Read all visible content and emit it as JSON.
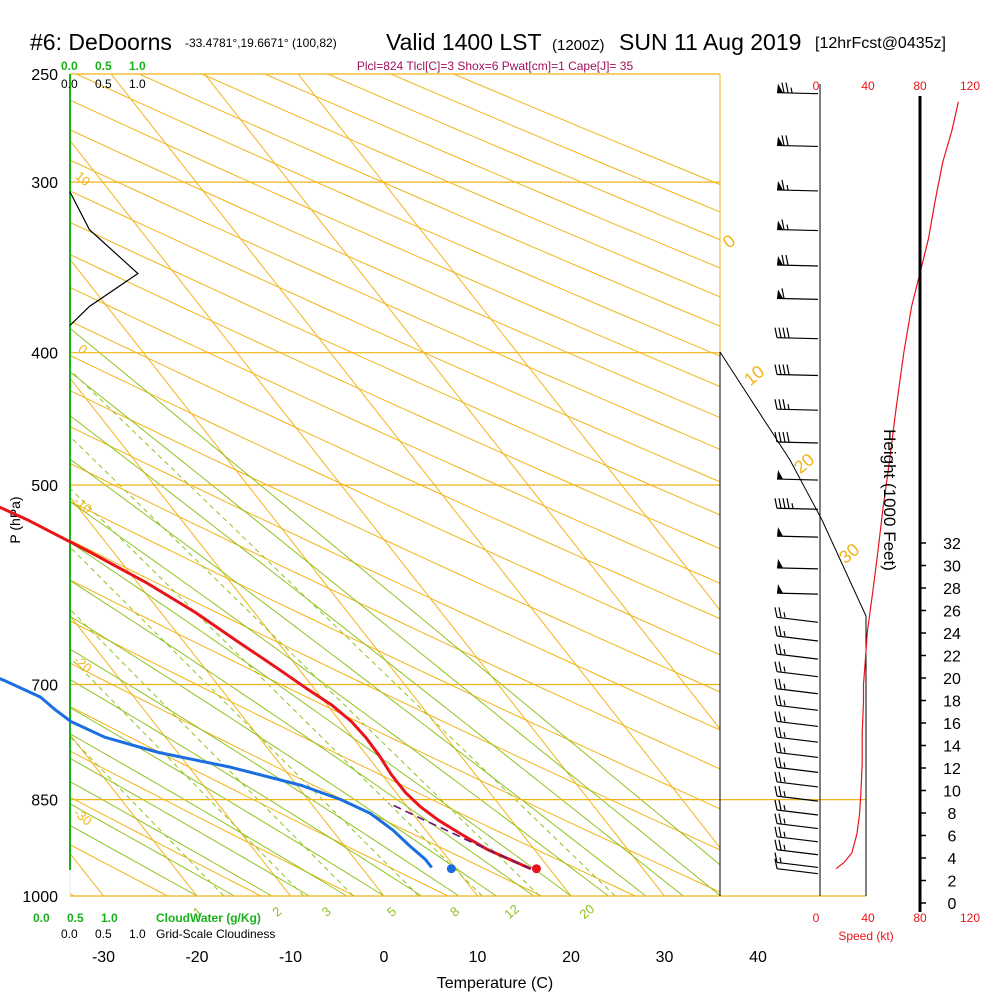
{
  "header": {
    "station": "#6: DeDoorns",
    "coords": "-33.4781°,19.6671° (100,82)",
    "valid": "Valid 1400 LST",
    "utc": "(1200Z)",
    "date": "SUN 11 Aug 2019",
    "forecast": "[12hrFcst@0435z]",
    "indices": "Plcl=824 Tlcl[C]=3 Shox=6 Pwat[cm]=1 Cape[J]= 35"
  },
  "colors": {
    "isotherm": "#f2b418",
    "adiabat": "#8fc31f",
    "temperature": "#e8141a",
    "dewpoint": "#1a6fe0",
    "parcel": "#6a1470",
    "wind_speed": "#e8141a",
    "cloud_water": "#19b119"
  },
  "chart_data": {
    "type": "line",
    "title": "Skew-T log-P sounding",
    "xlabel": "Temperature (C)",
    "ylabel": "P (hPa)",
    "x_ticks": [
      "-30",
      "-20",
      "-10",
      "0",
      "10",
      "20",
      "30",
      "40"
    ],
    "p_levels": [
      250,
      300,
      400,
      500,
      700,
      850,
      1000
    ],
    "p_labels": [
      "250",
      "300",
      "400",
      "500",
      "700",
      "850",
      "1000"
    ],
    "height_axis": {
      "label": "Height (1000 Feet)",
      "ticks": [
        "0",
        "2",
        "4",
        "6",
        "8",
        "10",
        "12",
        "14",
        "16",
        "18",
        "20",
        "22",
        "24",
        "26",
        "28",
        "30",
        "32"
      ]
    },
    "isotherm_labels": [
      {
        "text": "10",
        "T": 10,
        "p": 300
      },
      {
        "text": "0",
        "T": 0,
        "p": 400
      },
      {
        "text": "-10",
        "T": -10,
        "p": 520
      },
      {
        "text": "-20",
        "T": -20,
        "p": 680
      },
      {
        "text": "-30",
        "T": -30,
        "p": 880
      }
    ],
    "mixing_ratio_labels": [
      "1",
      "2",
      "3",
      "5",
      "8",
      "12",
      "20"
    ],
    "lapse_labels": [
      "0",
      "10",
      "20",
      "30"
    ],
    "series": [
      {
        "name": "Temperature",
        "points": [
          [
            18.0,
            955
          ],
          [
            17.0,
            945
          ],
          [
            15.0,
            925
          ],
          [
            13.4,
            900
          ],
          [
            12.2,
            880
          ],
          [
            11.4,
            860
          ],
          [
            11.0,
            840
          ],
          [
            11.0,
            815
          ],
          [
            11.3,
            790
          ],
          [
            11.4,
            765
          ],
          [
            11.2,
            745
          ],
          [
            10.5,
            725
          ],
          [
            9.2,
            705
          ],
          [
            7.7,
            680
          ],
          [
            5.7,
            650
          ],
          [
            3.7,
            620
          ],
          [
            1.0,
            590
          ],
          [
            -2.5,
            560
          ],
          [
            -6.5,
            530
          ],
          [
            -10.0,
            510
          ],
          [
            -13.6,
            490
          ],
          [
            -17.0,
            470
          ],
          [
            -20.5,
            450
          ],
          [
            -24.3,
            430
          ],
          [
            -28.3,
            410
          ],
          [
            -32.0,
            390
          ],
          [
            -35.3,
            370
          ],
          [
            -38.2,
            350
          ],
          [
            -40.8,
            330
          ],
          [
            -42.5,
            315
          ],
          [
            -43.3,
            305
          ],
          [
            -43.0,
            290
          ],
          [
            -42.5,
            280
          ],
          [
            -42.0,
            270
          ],
          [
            -41.6,
            260
          ],
          [
            -41.5,
            255
          ]
        ]
      },
      {
        "name": "Dewpoint",
        "points": [
          [
            7.5,
            953
          ],
          [
            7.5,
            940
          ],
          [
            7.0,
            920
          ],
          [
            6.5,
            895
          ],
          [
            5.5,
            870
          ],
          [
            3.5,
            850
          ],
          [
            0.5,
            830
          ],
          [
            -5.5,
            805
          ],
          [
            -12.0,
            785
          ],
          [
            -16.5,
            765
          ],
          [
            -18.8,
            745
          ],
          [
            -19.5,
            730
          ],
          [
            -20.0,
            715
          ],
          [
            -22.5,
            695
          ],
          [
            -26.5,
            670
          ],
          [
            -36.0,
            635
          ],
          [
            -42.0,
            615
          ],
          [
            -42.0,
            600
          ],
          [
            -39.2,
            580
          ],
          [
            -34.8,
            555
          ],
          [
            -29.5,
            530
          ],
          [
            -27.2,
            505
          ],
          [
            -27.4,
            490
          ],
          [
            -28.6,
            470
          ],
          [
            -30.3,
            450
          ],
          [
            -33.0,
            425
          ],
          [
            -35.5,
            400
          ],
          [
            -37.4,
            380
          ],
          [
            -39.5,
            365
          ],
          [
            -42.4,
            345
          ],
          [
            -44.6,
            325
          ],
          [
            -46.9,
            305
          ],
          [
            -49.0,
            290
          ],
          [
            -52.0,
            275
          ],
          [
            -55.6,
            260
          ],
          [
            -58.3,
            252
          ]
        ]
      },
      {
        "name": "Parcel",
        "points": [
          [
            18.0,
            955
          ],
          [
            16.5,
            940
          ],
          [
            15.0,
            925
          ],
          [
            13.6,
            910
          ],
          [
            12.2,
            895
          ],
          [
            10.7,
            880
          ],
          [
            9.3,
            865
          ],
          [
            8.3,
            855
          ]
        ]
      }
    ],
    "surface_markers": [
      {
        "name": "surface temperature",
        "T": 18.6,
        "p": 955
      },
      {
        "name": "surface dewpoint",
        "T": 9.5,
        "p": 955
      }
    ],
    "wind_speed_profile": {
      "axis_ticks": [
        "0",
        "40",
        "80",
        "120"
      ],
      "axis_label": "Speed (kt)",
      "points": [
        [
          14,
          955
        ],
        [
          20,
          945
        ],
        [
          26,
          930
        ],
        [
          30,
          900
        ],
        [
          32,
          870
        ],
        [
          33,
          840
        ],
        [
          34,
          800
        ],
        [
          34,
          760
        ],
        [
          35,
          720
        ],
        [
          35,
          700
        ],
        [
          36,
          680
        ],
        [
          38,
          640
        ],
        [
          42,
          600
        ],
        [
          46,
          560
        ],
        [
          50,
          520
        ],
        [
          55,
          480
        ],
        [
          60,
          440
        ],
        [
          66,
          400
        ],
        [
          72,
          370
        ],
        [
          80,
          345
        ],
        [
          85,
          330
        ],
        [
          90,
          310
        ],
        [
          96,
          290
        ],
        [
          103,
          275
        ],
        [
          108,
          262
        ]
      ]
    },
    "cloud_axis": {
      "ticks": [
        "0.0",
        "0.5",
        "1.0"
      ],
      "water_label": "CloudWater (g/Kg)",
      "cloudiness_label": "Grid-Scale Cloudiness",
      "cloudiness_profile": [
        [
          0.0,
          305
        ],
        [
          0.1,
          325
        ],
        [
          0.35,
          350
        ],
        [
          0.1,
          370
        ],
        [
          0.0,
          382
        ]
      ]
    },
    "wind_barbs": [
      {
        "p": 258,
        "speed": 75
      },
      {
        "p": 282,
        "speed": 70
      },
      {
        "p": 304,
        "speed": 65
      },
      {
        "p": 325,
        "speed": 65
      },
      {
        "p": 345,
        "speed": 70
      },
      {
        "p": 365,
        "speed": 60
      },
      {
        "p": 390,
        "speed": 40
      },
      {
        "p": 415,
        "speed": 40
      },
      {
        "p": 440,
        "speed": 35
      },
      {
        "p": 465,
        "speed": 40
      },
      {
        "p": 495,
        "speed": 50
      },
      {
        "p": 520,
        "speed": 45
      },
      {
        "p": 545,
        "speed": 50
      },
      {
        "p": 575,
        "speed": 50
      },
      {
        "p": 600,
        "speed": 50
      },
      {
        "p": 625,
        "speed": 25
      },
      {
        "p": 645,
        "speed": 25
      },
      {
        "p": 665,
        "speed": 25
      },
      {
        "p": 685,
        "speed": 25
      },
      {
        "p": 705,
        "speed": 25
      },
      {
        "p": 725,
        "speed": 25
      },
      {
        "p": 745,
        "speed": 25
      },
      {
        "p": 765,
        "speed": 25
      },
      {
        "p": 785,
        "speed": 25
      },
      {
        "p": 805,
        "speed": 25
      },
      {
        "p": 825,
        "speed": 25
      },
      {
        "p": 845,
        "speed": 25
      },
      {
        "p": 865,
        "speed": 25
      },
      {
        "p": 885,
        "speed": 25
      },
      {
        "p": 905,
        "speed": 25
      },
      {
        "p": 925,
        "speed": 25
      },
      {
        "p": 945,
        "speed": 15
      },
      {
        "p": 955,
        "speed": 10
      }
    ]
  }
}
